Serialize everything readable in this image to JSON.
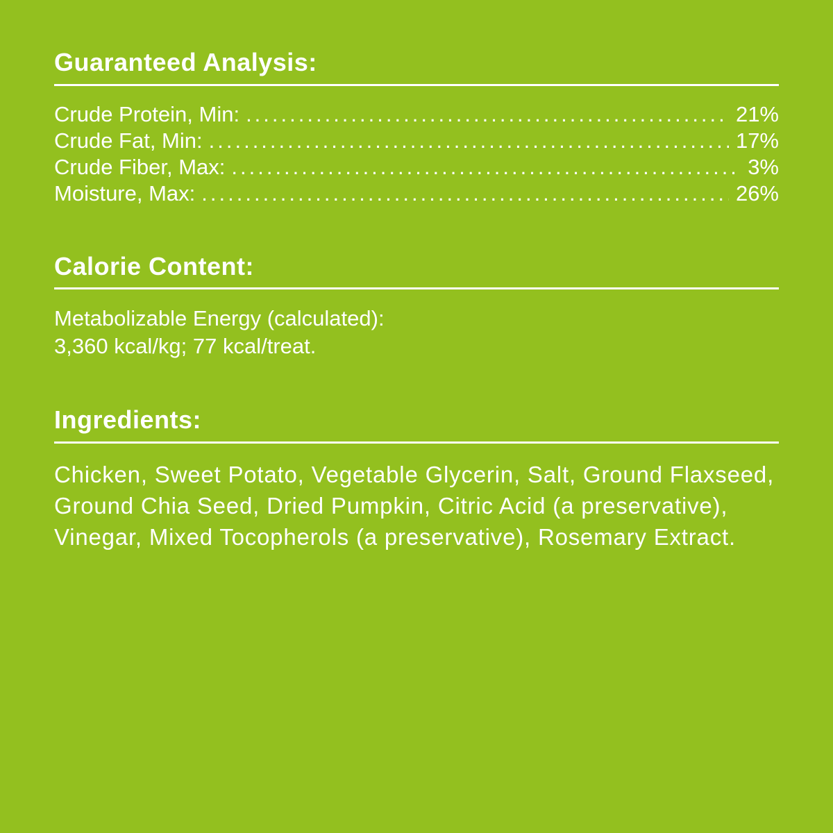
{
  "colors": {
    "background": "#93C01F",
    "text": "#FFFFFF"
  },
  "guaranteed_analysis": {
    "title": "Guaranteed Analysis:",
    "rows": [
      {
        "label": "Crude Protein, Min:",
        "value": "21%"
      },
      {
        "label": "Crude Fat, Min:",
        "value": "17%"
      },
      {
        "label": "Crude Fiber, Max:",
        "value": "3%"
      },
      {
        "label": "Moisture, Max:",
        "value": "26%"
      }
    ]
  },
  "calorie_content": {
    "title": "Calorie Content:",
    "line1": "Metabolizable Energy (calculated):",
    "line2": "3,360 kcal/kg; 77 kcal/treat."
  },
  "ingredients": {
    "title": "Ingredients:",
    "text": "Chicken, Sweet Potato, Vegetable Glycerin, Salt, Ground Flaxseed, Ground Chia Seed, Dried Pumpkin, Citric Acid (a preservative), Vinegar, Mixed Tocopherols (a preservative), Rosemary Extract."
  }
}
